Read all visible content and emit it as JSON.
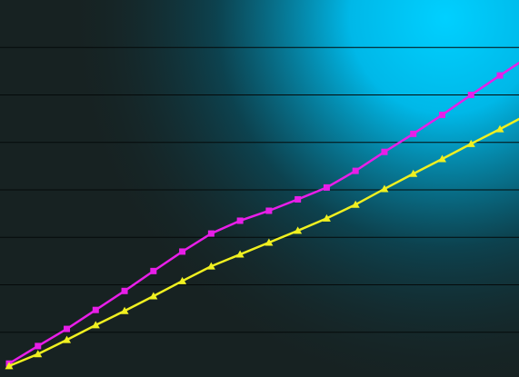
{
  "chart_data": {
    "type": "line",
    "x": [
      0,
      1,
      2,
      3,
      4,
      5,
      6,
      7,
      8,
      9,
      10,
      11,
      12,
      13,
      14,
      15,
      16,
      17,
      18
    ],
    "series": [
      {
        "color": "#e81ee8",
        "marker": "square",
        "values": [
          0.34,
          0.71,
          1.07,
          1.47,
          1.87,
          2.29,
          2.7,
          3.08,
          3.35,
          3.56,
          3.8,
          4.05,
          4.4,
          4.8,
          5.18,
          5.58,
          6.0,
          6.41,
          6.81
        ]
      },
      {
        "color": "#f0f020",
        "marker": "triangle",
        "values": [
          0.29,
          0.54,
          0.84,
          1.15,
          1.45,
          1.76,
          2.08,
          2.39,
          2.64,
          2.89,
          3.14,
          3.4,
          3.69,
          4.02,
          4.34,
          4.65,
          4.97,
          5.28,
          5.6
        ]
      }
    ],
    "xlim": [
      0,
      17.66
    ],
    "ylim": [
      0,
      8
    ],
    "yticks": [
      1,
      2,
      3,
      4,
      5,
      6,
      7
    ],
    "grid": true
  }
}
